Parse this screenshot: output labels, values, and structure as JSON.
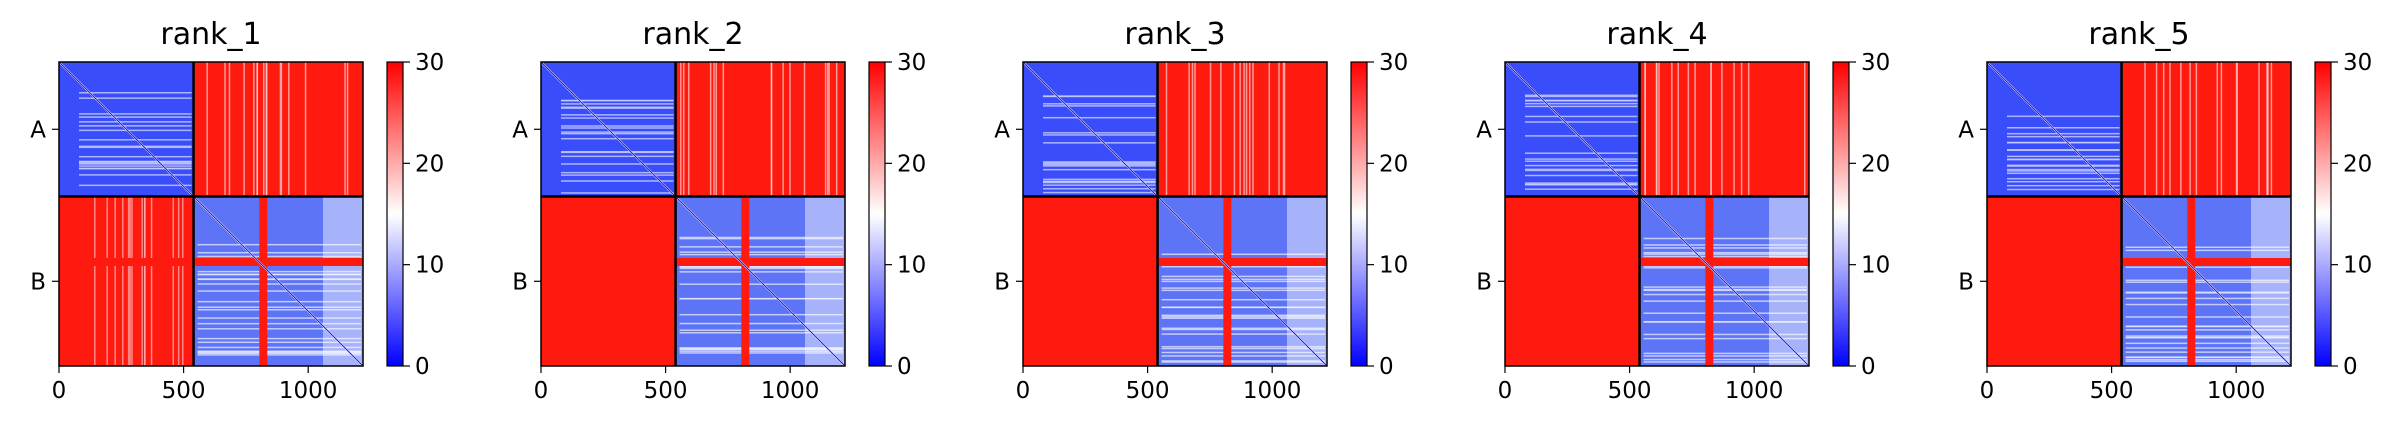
{
  "figure": {
    "colormap": {
      "low": "#0000ff",
      "mid": "#ffffff",
      "high": "#ff0000",
      "vmin": 0,
      "vmax": 30
    },
    "colorbar_ticks": [
      "0",
      "10",
      "20",
      "30"
    ],
    "x_ticks": [
      "0",
      "500",
      "1000"
    ],
    "y_tick_labels": [
      "A",
      "B"
    ]
  },
  "chart_data": [
    {
      "type": "heatmap",
      "title": "rank_1",
      "x_ticks": [
        0,
        500,
        1000
      ],
      "xlim": [
        0,
        1220
      ],
      "blocks": [
        "A",
        "B"
      ],
      "block_boundary": 540,
      "colorbar": {
        "min": 0,
        "max": 30,
        "ticks": [
          0,
          10,
          20,
          30
        ]
      },
      "pattern": {
        "intra_A": "low (blue)",
        "intra_B": "low (blue)",
        "inter_AB": "high (red)"
      }
    },
    {
      "type": "heatmap",
      "title": "rank_2",
      "x_ticks": [
        0,
        500,
        1000
      ],
      "xlim": [
        0,
        1220
      ],
      "blocks": [
        "A",
        "B"
      ],
      "block_boundary": 540,
      "colorbar": {
        "min": 0,
        "max": 30,
        "ticks": [
          0,
          10,
          20,
          30
        ]
      },
      "pattern": {
        "intra_A": "low (blue)",
        "intra_B": "low (blue)",
        "inter_AB": "high (red)"
      }
    },
    {
      "type": "heatmap",
      "title": "rank_3",
      "x_ticks": [
        0,
        500,
        1000
      ],
      "xlim": [
        0,
        1220
      ],
      "blocks": [
        "A",
        "B"
      ],
      "block_boundary": 540,
      "colorbar": {
        "min": 0,
        "max": 30,
        "ticks": [
          0,
          10,
          20,
          30
        ]
      },
      "pattern": {
        "intra_A": "low (blue)",
        "intra_B": "low (blue)",
        "inter_AB": "high (red)"
      }
    },
    {
      "type": "heatmap",
      "title": "rank_4",
      "x_ticks": [
        0,
        500,
        1000
      ],
      "xlim": [
        0,
        1220
      ],
      "blocks": [
        "A",
        "B"
      ],
      "block_boundary": 540,
      "colorbar": {
        "min": 0,
        "max": 30,
        "ticks": [
          0,
          10,
          20,
          30
        ]
      },
      "pattern": {
        "intra_A": "low (blue)",
        "intra_B": "low (blue)",
        "inter_AB": "high (red)"
      }
    },
    {
      "type": "heatmap",
      "title": "rank_5",
      "x_ticks": [
        0,
        500,
        1000
      ],
      "xlim": [
        0,
        1220
      ],
      "blocks": [
        "A",
        "B"
      ],
      "block_boundary": 540,
      "colorbar": {
        "min": 0,
        "max": 30,
        "ticks": [
          0,
          10,
          20,
          30
        ]
      },
      "pattern": {
        "intra_A": "low (blue)",
        "intra_B": "low (blue)",
        "inter_AB": "high (red)"
      }
    }
  ]
}
